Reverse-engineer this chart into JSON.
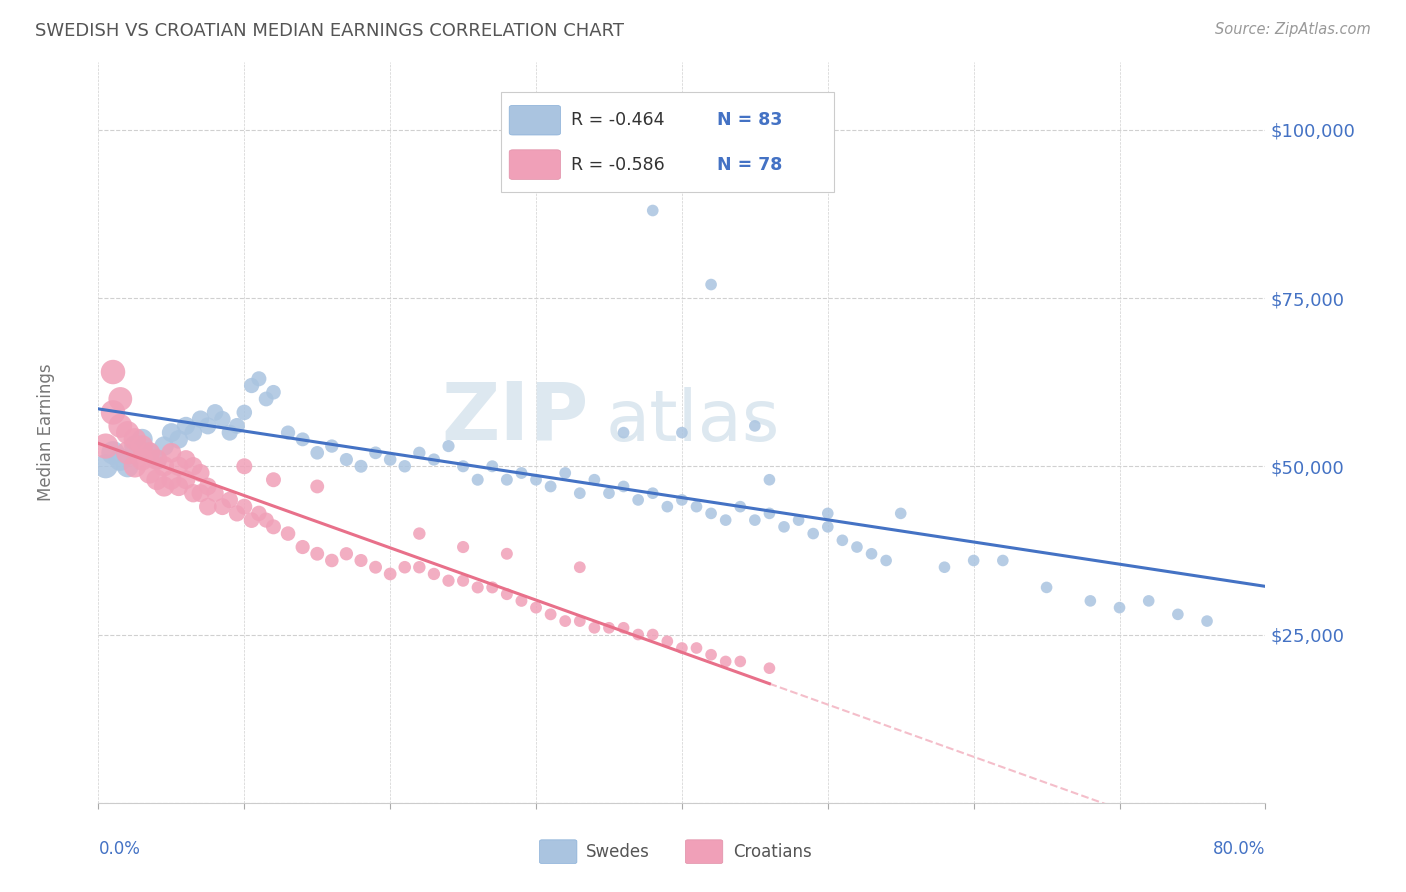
{
  "title": "SWEDISH VS CROATIAN MEDIAN EARNINGS CORRELATION CHART",
  "source": "Source: ZipAtlas.com",
  "ylabel": "Median Earnings",
  "yticks": [
    0,
    25000,
    50000,
    75000,
    100000
  ],
  "ytick_labels": [
    "",
    "$25,000",
    "$50,000",
    "$75,000",
    "$100,000"
  ],
  "xmin": 0.0,
  "xmax": 0.8,
  "ymin": 0,
  "ymax": 110000,
  "legend_r_swedes": "-0.464",
  "legend_n_swedes": "83",
  "legend_r_croatians": "-0.586",
  "legend_n_croatians": "78",
  "swede_color": "#aac4e0",
  "croatian_color": "#f0a0b8",
  "swede_line_color": "#4472c4",
  "croatian_line_color": "#e8708a",
  "axis_label_color": "#4472c4",
  "title_color": "#555555",
  "grid_color": "#d0d0d0",
  "watermark_zip": "ZIP",
  "watermark_atlas": "atlas",
  "legend_label_swedes": "Swedes",
  "legend_label_croatians": "Croatians",
  "swedes_x": [
    0.005,
    0.01,
    0.015,
    0.02,
    0.025,
    0.03,
    0.035,
    0.04,
    0.045,
    0.05,
    0.055,
    0.06,
    0.065,
    0.07,
    0.075,
    0.08,
    0.085,
    0.09,
    0.095,
    0.1,
    0.105,
    0.11,
    0.115,
    0.12,
    0.13,
    0.14,
    0.15,
    0.16,
    0.17,
    0.18,
    0.19,
    0.2,
    0.21,
    0.22,
    0.23,
    0.24,
    0.25,
    0.26,
    0.27,
    0.28,
    0.29,
    0.3,
    0.31,
    0.32,
    0.33,
    0.34,
    0.35,
    0.36,
    0.37,
    0.38,
    0.39,
    0.4,
    0.41,
    0.42,
    0.43,
    0.44,
    0.45,
    0.46,
    0.47,
    0.48,
    0.49,
    0.5,
    0.51,
    0.52,
    0.53,
    0.54,
    0.38,
    0.42,
    0.46,
    0.5,
    0.55,
    0.58,
    0.6,
    0.62,
    0.65,
    0.68,
    0.7,
    0.72,
    0.74,
    0.76,
    0.36,
    0.4,
    0.45
  ],
  "swedes_y": [
    50000,
    52000,
    51000,
    50000,
    53000,
    54000,
    52000,
    51000,
    53000,
    55000,
    54000,
    56000,
    55000,
    57000,
    56000,
    58000,
    57000,
    55000,
    56000,
    58000,
    62000,
    63000,
    60000,
    61000,
    55000,
    54000,
    52000,
    53000,
    51000,
    50000,
    52000,
    51000,
    50000,
    52000,
    51000,
    53000,
    50000,
    48000,
    50000,
    48000,
    49000,
    48000,
    47000,
    49000,
    46000,
    48000,
    46000,
    47000,
    45000,
    46000,
    44000,
    45000,
    44000,
    43000,
    42000,
    44000,
    42000,
    43000,
    41000,
    42000,
    40000,
    41000,
    39000,
    38000,
    37000,
    36000,
    88000,
    77000,
    48000,
    43000,
    43000,
    35000,
    36000,
    36000,
    32000,
    30000,
    29000,
    30000,
    28000,
    27000,
    55000,
    55000,
    56000
  ],
  "swedes_sizes": [
    80,
    80,
    80,
    80,
    80,
    80,
    80,
    80,
    80,
    80,
    80,
    80,
    80,
    80,
    80,
    80,
    80,
    80,
    80,
    80,
    80,
    80,
    80,
    80,
    80,
    80,
    80,
    80,
    80,
    80,
    80,
    80,
    80,
    80,
    80,
    80,
    80,
    80,
    80,
    80,
    80,
    80,
    80,
    80,
    80,
    80,
    80,
    80,
    80,
    80,
    80,
    80,
    80,
    80,
    80,
    80,
    80,
    80,
    80,
    80,
    80,
    80,
    80,
    80,
    80,
    80,
    80,
    80,
    80,
    80,
    80,
    80,
    80,
    80,
    80,
    80,
    80,
    80,
    80,
    80,
    80,
    80,
    80
  ],
  "croatians_x": [
    0.005,
    0.01,
    0.01,
    0.015,
    0.015,
    0.02,
    0.02,
    0.025,
    0.025,
    0.03,
    0.03,
    0.035,
    0.035,
    0.04,
    0.04,
    0.045,
    0.045,
    0.05,
    0.05,
    0.055,
    0.055,
    0.06,
    0.06,
    0.065,
    0.065,
    0.07,
    0.07,
    0.075,
    0.075,
    0.08,
    0.085,
    0.09,
    0.095,
    0.1,
    0.105,
    0.11,
    0.115,
    0.12,
    0.13,
    0.14,
    0.15,
    0.16,
    0.17,
    0.18,
    0.19,
    0.2,
    0.21,
    0.22,
    0.23,
    0.24,
    0.25,
    0.26,
    0.27,
    0.28,
    0.29,
    0.3,
    0.31,
    0.32,
    0.33,
    0.34,
    0.35,
    0.36,
    0.37,
    0.38,
    0.39,
    0.4,
    0.41,
    0.42,
    0.43,
    0.44,
    0.22,
    0.25,
    0.28,
    0.33,
    0.15,
    0.12,
    0.1,
    0.46
  ],
  "croatians_y": [
    53000,
    64000,
    58000,
    60000,
    56000,
    55000,
    52000,
    54000,
    50000,
    53000,
    51000,
    52000,
    49000,
    51000,
    48000,
    50000,
    47000,
    52000,
    48000,
    50000,
    47000,
    51000,
    48000,
    50000,
    46000,
    49000,
    46000,
    47000,
    44000,
    46000,
    44000,
    45000,
    43000,
    44000,
    42000,
    43000,
    42000,
    41000,
    40000,
    38000,
    37000,
    36000,
    37000,
    36000,
    35000,
    34000,
    35000,
    35000,
    34000,
    33000,
    33000,
    32000,
    32000,
    31000,
    30000,
    29000,
    28000,
    27000,
    27000,
    26000,
    26000,
    26000,
    25000,
    25000,
    24000,
    23000,
    23000,
    22000,
    21000,
    21000,
    40000,
    38000,
    37000,
    35000,
    47000,
    48000,
    50000,
    20000
  ],
  "background_color": "#ffffff"
}
